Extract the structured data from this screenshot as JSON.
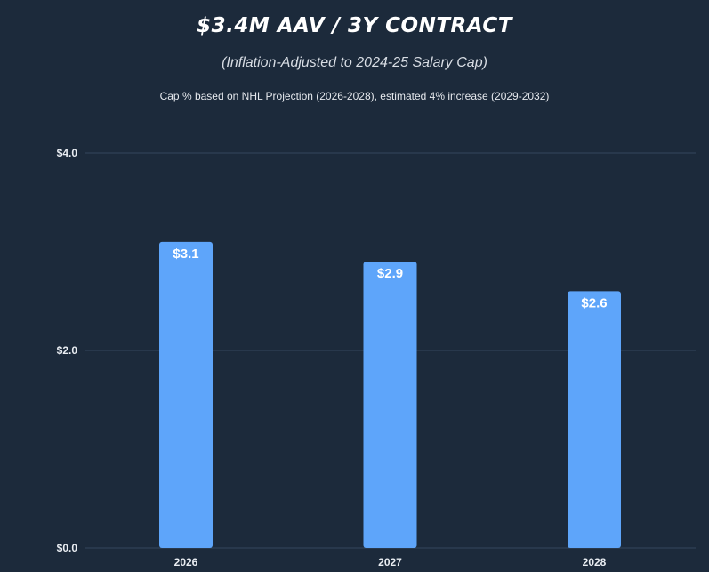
{
  "header": {
    "title": "$3.4M AAV / 3Y CONTRACT",
    "subtitle": "(Inflation-Adjusted to 2024-25 Salary Cap)",
    "note": "Cap % based on NHL Projection (2026-2028), estimated 4% increase (2029-2032)"
  },
  "colors": {
    "background": "#1c2a3b",
    "bar": "#5ea5fa",
    "grid": "#33465c",
    "text": "#ffffff"
  },
  "chart_data": {
    "type": "bar",
    "title": "$3.4M AAV / 3Y CONTRACT",
    "subtitle": "(Inflation-Adjusted to 2024-25 Salary Cap)",
    "categories": [
      "2026",
      "2027",
      "2028"
    ],
    "values": [
      3.1,
      2.9,
      2.6
    ],
    "data_labels": [
      "$3.1",
      "$2.9",
      "$2.6"
    ],
    "yticks": [
      0,
      2,
      4
    ],
    "ytick_labels": [
      "$0.0",
      "$2.0",
      "$4.0"
    ],
    "ylim": [
      0,
      4
    ],
    "xlabel": "",
    "ylabel": "",
    "grid": true,
    "legend": "none"
  }
}
